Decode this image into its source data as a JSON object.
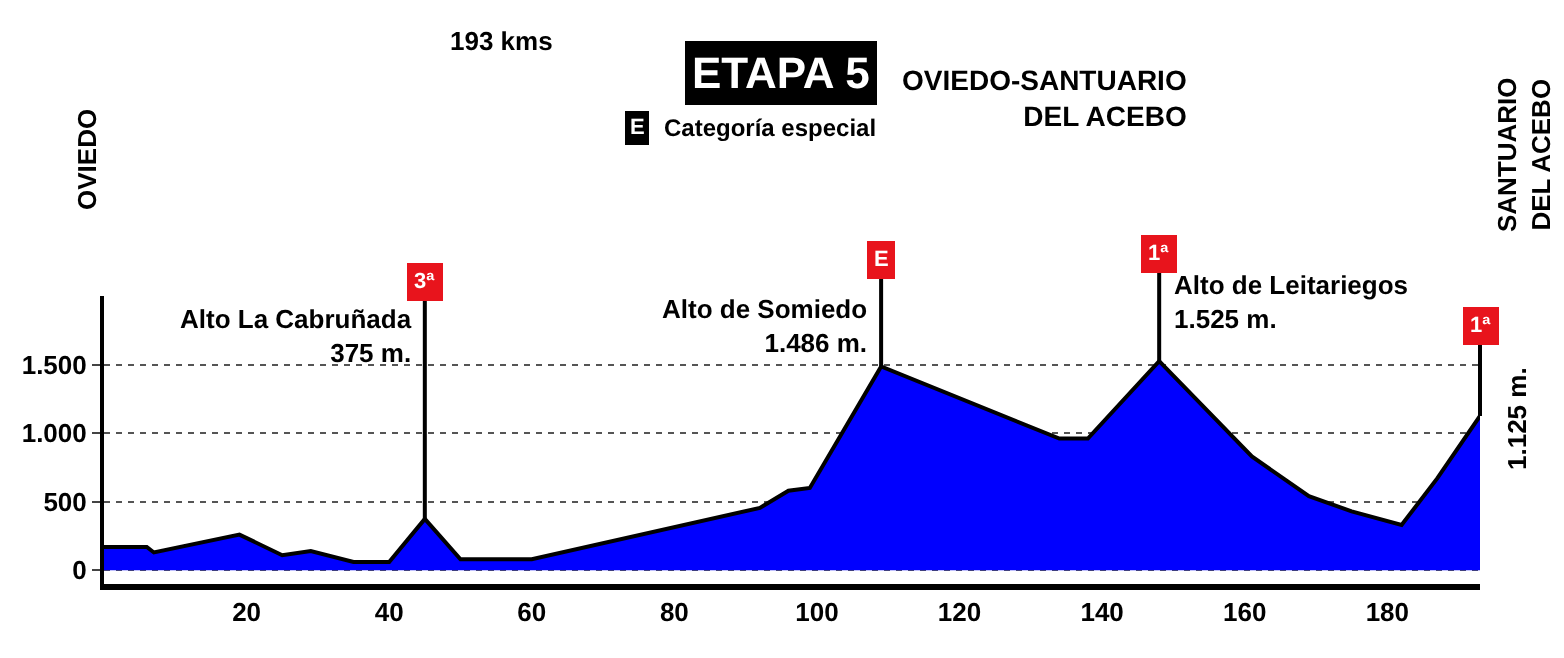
{
  "chart_data": {
    "type": "area",
    "title": "ETAPA 5",
    "subtitle": "OVIEDO-SANTUARIO\nDEL ACEBO",
    "x": [
      0,
      6,
      7,
      19,
      25,
      29,
      35,
      40,
      45,
      50,
      60,
      92,
      96,
      99,
      109,
      134,
      138,
      148,
      161,
      169,
      175,
      182,
      187,
      193
    ],
    "series": [
      {
        "color": "#0000ff",
        "values": [
          170,
          170,
          130,
          260,
          110,
          140,
          60,
          60,
          375,
          80,
          80,
          455,
          580,
          600,
          1486,
          960,
          960,
          1525,
          830,
          540,
          430,
          330,
          670,
          1125
        ]
      }
    ],
    "xlim": [
      0,
      193
    ],
    "xticks": [
      20,
      40,
      60,
      80,
      100,
      120,
      140,
      160,
      180
    ],
    "ylim": [
      -100,
      2000
    ],
    "yticks": [
      0,
      {
        "value": 500,
        "label": "500"
      },
      {
        "value": 1000,
        "label": "1.000"
      },
      {
        "value": 1500,
        "label": "1.500"
      }
    ],
    "grid": "y",
    "annotations": [
      "193 kms",
      "E",
      "Categoría especial",
      "OVIEDO",
      "SANTUARIO\nDEL ACEBO",
      {
        "text": "Alto La Cabruñada\n375 m.",
        "x": 45,
        "y": 375
      },
      {
        "text": "3ª",
        "x": 45,
        "y": 375
      },
      {
        "text": "Alto de Somiedo\n1.486 m.",
        "x": 109,
        "y": 1486
      },
      {
        "text": "E",
        "x": 109,
        "y": 1486
      },
      {
        "text": "Alto de Leitariegos\n1.525 m.",
        "x": 148,
        "y": 1525
      },
      {
        "text": "1ª",
        "x": 148,
        "y": 1525
      },
      {
        "text": "1ª",
        "x": 193,
        "y": 1125
      },
      {
        "text": "1.125 m.",
        "x": 193,
        "y": 1125
      }
    ]
  }
}
